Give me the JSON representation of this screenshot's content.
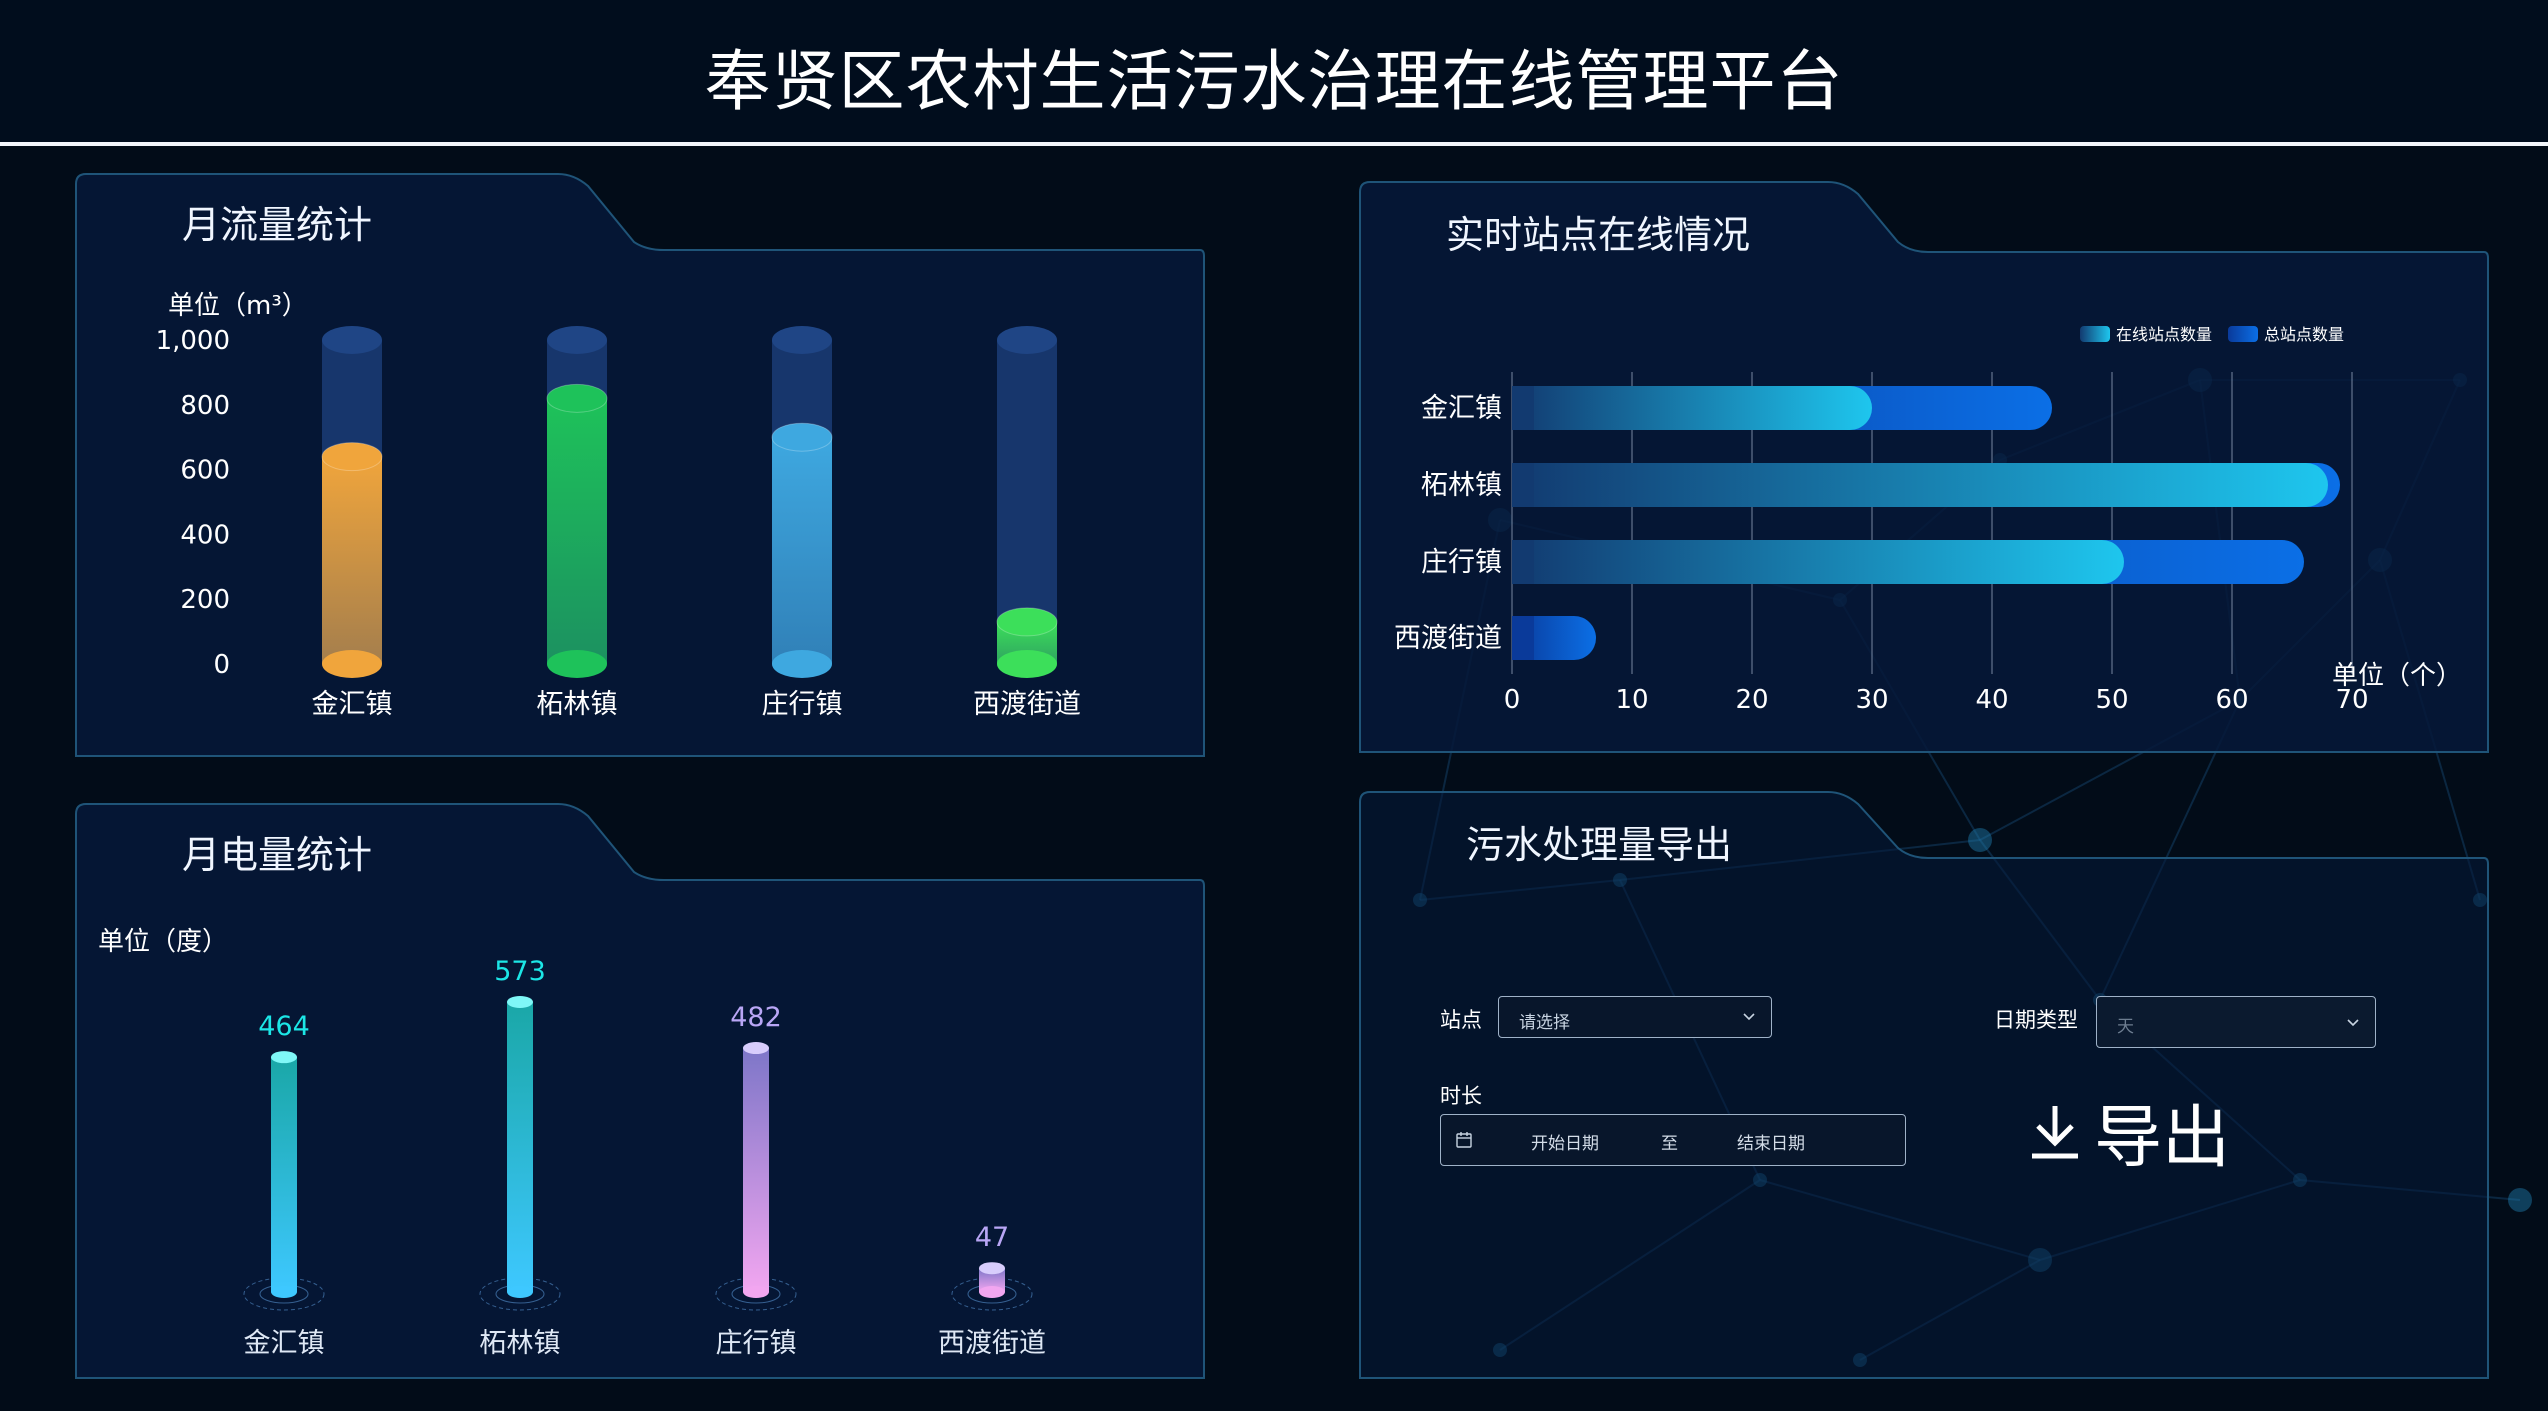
{
  "header": {
    "title": "奉贤区农村生活污水治理在线管理平台"
  },
  "panels": {
    "flow": {
      "title": "月流量统计",
      "unit": "单位（m³）",
      "y_ticks": [
        "1,000",
        "800",
        "600",
        "400",
        "200",
        "0"
      ]
    },
    "power": {
      "title": "月电量统计",
      "unit": "单位（度）"
    },
    "online": {
      "title": "实时站点在线情况",
      "unit": "单位（个）",
      "legend": {
        "online": "在线站点数量",
        "total": "总站点数量"
      }
    },
    "export": {
      "title": "污水处理量导出",
      "station_label": "站点",
      "station_placeholder": "请选择",
      "date_type_label": "日期类型",
      "date_type_value": "天",
      "duration_label": "时长",
      "start_placeholder": "开始日期",
      "range_separator": "至",
      "end_placeholder": "结束日期",
      "export_label": "导出"
    }
  },
  "chart_data": [
    {
      "type": "bar",
      "categories": [
        "金汇镇",
        "柘林镇",
        "庄行镇",
        "西渡街道"
      ],
      "values": [
        640,
        820,
        700,
        130
      ],
      "ylim": [
        0,
        1000
      ],
      "ylabel": "单位（m³）",
      "colors": [
        "#f0a53c",
        "#1ec25a",
        "#3ea8e0",
        "#3cdf5a"
      ]
    },
    {
      "type": "bar",
      "categories": [
        "金汇镇",
        "柘林镇",
        "庄行镇",
        "西渡街道"
      ],
      "values": [
        464,
        573,
        482,
        47
      ],
      "ylim": [
        0,
        600
      ],
      "ylabel": "单位（度）",
      "colors": [
        "#1ce6e6",
        "#1ce6e6",
        "#b9a6f5",
        "#b9a6f5"
      ]
    },
    {
      "type": "bar",
      "orientation": "horizontal",
      "categories": [
        "金汇镇",
        "柘林镇",
        "庄行镇",
        "西渡街道"
      ],
      "series": [
        {
          "name": "在线站点数量",
          "values": [
            30,
            68,
            51,
            0
          ]
        },
        {
          "name": "总站点数量",
          "values": [
            45,
            69,
            66,
            7
          ]
        }
      ],
      "xlim": [
        0,
        70
      ],
      "x_ticks": [
        "0",
        "10",
        "20",
        "30",
        "40",
        "50",
        "60",
        "70"
      ],
      "xlabel": "单位（个）",
      "legend": "top-right",
      "grid": true
    }
  ]
}
